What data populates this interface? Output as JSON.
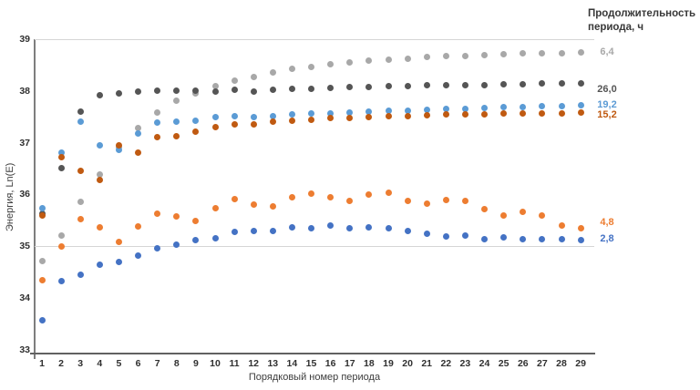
{
  "chart_data": {
    "type": "scatter",
    "x_label": "Порядковый номер периода",
    "y_label": "Энергия, Ln(E)",
    "legend_title_line1": "Продолжительность",
    "legend_title_line2": "периода, ч",
    "x_ticks": [
      1,
      2,
      3,
      4,
      5,
      6,
      7,
      8,
      9,
      10,
      11,
      12,
      13,
      14,
      15,
      16,
      17,
      18,
      19,
      20,
      21,
      22,
      23,
      24,
      25,
      26,
      27,
      28,
      29
    ],
    "y_ticks": [
      39,
      38,
      37,
      36,
      35,
      34,
      33
    ],
    "ylim": [
      33,
      39
    ],
    "xlim": [
      1,
      29
    ],
    "grid": "horizontal lines at 39 and 35 only",
    "gridlines_at": [
      39,
      35
    ],
    "legend_position": "right, labels colored as series, aligned with series end values",
    "series": [
      {
        "name": "6,4",
        "color": "#a8a8a8",
        "label_y": 38.75,
        "values": [
          34.71,
          35.2,
          35.85,
          36.38,
          36.91,
          37.28,
          37.59,
          37.81,
          37.95,
          38.1,
          38.2,
          38.27,
          38.36,
          38.42,
          38.46,
          38.51,
          38.55,
          38.58,
          38.61,
          38.63,
          38.65,
          38.67,
          38.68,
          38.7,
          38.71,
          38.72,
          38.73,
          38.73,
          38.74
        ]
      },
      {
        "name": "26,0",
        "color": "#555555",
        "label_y": 38.02,
        "values": [
          35.63,
          36.5,
          37.6,
          37.92,
          37.96,
          37.99,
          38.0,
          38.0,
          38.0,
          37.99,
          38.02,
          37.98,
          38.02,
          38.04,
          38.04,
          38.06,
          38.08,
          38.08,
          38.09,
          38.1,
          38.11,
          38.11,
          38.12,
          38.12,
          38.13,
          38.13,
          38.14,
          38.14,
          38.15
        ]
      },
      {
        "name": "19,2",
        "color": "#5b9bd5",
        "label_y": 37.73,
        "values": [
          35.74,
          36.81,
          37.4,
          36.95,
          36.86,
          37.17,
          37.39,
          37.4,
          37.43,
          37.49,
          37.51,
          37.5,
          37.52,
          37.55,
          37.56,
          37.57,
          37.58,
          37.6,
          37.61,
          37.62,
          37.63,
          37.65,
          37.66,
          37.67,
          37.68,
          37.69,
          37.7,
          37.71,
          37.73
        ]
      },
      {
        "name": "15,2",
        "color": "#c05a11",
        "label_y": 37.53,
        "values": [
          35.6,
          36.72,
          36.45,
          36.28,
          36.95,
          36.81,
          37.1,
          37.13,
          37.22,
          37.31,
          37.36,
          37.36,
          37.41,
          37.43,
          37.45,
          37.47,
          37.48,
          37.5,
          37.51,
          37.52,
          37.53,
          37.54,
          37.55,
          37.55,
          37.56,
          37.56,
          37.57,
          37.57,
          37.58
        ]
      },
      {
        "name": "4,8",
        "color": "#ed7d31",
        "label_y": 35.45,
        "values": [
          34.35,
          35.0,
          35.52,
          35.37,
          35.08,
          35.38,
          35.63,
          35.58,
          35.48,
          35.74,
          35.91,
          35.8,
          35.77,
          35.94,
          36.02,
          35.94,
          35.87,
          36.0,
          36.03,
          35.87,
          35.83,
          35.89,
          35.87,
          35.71,
          35.6,
          35.66,
          35.59,
          35.4,
          35.34
        ]
      },
      {
        "name": "2,8",
        "color": "#4472c4",
        "label_y": 35.13,
        "values": [
          33.56,
          34.33,
          34.44,
          34.64,
          34.69,
          34.81,
          34.96,
          35.03,
          35.11,
          35.16,
          35.28,
          35.3,
          35.3,
          35.36,
          35.34,
          35.4,
          35.34,
          35.37,
          35.34,
          35.29,
          35.24,
          35.18,
          35.21,
          35.13,
          35.17,
          35.13,
          35.13,
          35.14,
          35.11
        ]
      }
    ]
  }
}
